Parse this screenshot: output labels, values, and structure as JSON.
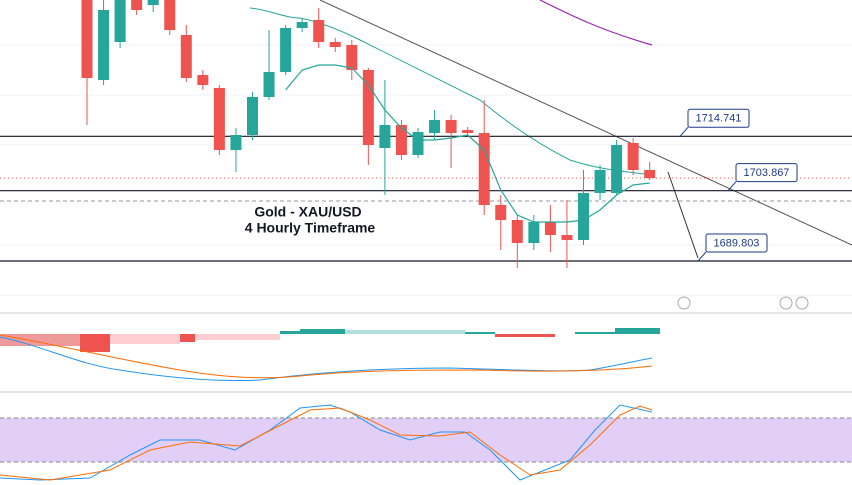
{
  "chart_data": {
    "type": "candlestick",
    "title": "Gold - XAU/USD",
    "subtitle": "4 Hourly Timeframe",
    "ylim": [
      1680,
      1742
    ],
    "up_color": "#26a69a",
    "down_color": "#ef5350",
    "open": [
      1742,
      1726,
      1733.6,
      1742,
      1741,
      1742,
      1735,
      1727,
      1724.4,
      1712,
      1715,
      1722.6,
      1727.6,
      1736.4,
      1738,
      1733.6,
      1733,
      1728,
      1712.4,
      1717,
      1711,
      1715.4,
      1718,
      1716,
      1715.4,
      1701,
      1698,
      1693.4,
      1697.6,
      1695,
      1694,
      1703.4,
      1703.4,
      1713.4,
      1708
    ],
    "high": [
      1742,
      1742,
      1742,
      1742,
      1742,
      1742,
      1737,
      1728,
      1725,
      1716.4,
      1723.6,
      1736,
      1737,
      1738.4,
      1740.4,
      1734.4,
      1734,
      1728.4,
      1726,
      1718,
      1716.4,
      1720,
      1719,
      1716.6,
      1722,
      1703,
      1699,
      1699,
      1701,
      1702,
      1708,
      1709,
      1714,
      1714.4,
      1709.6
    ],
    "low": [
      1717,
      1725,
      1732.4,
      1739,
      1739.6,
      1735,
      1725.6,
      1724,
      1711,
      1707.6,
      1714,
      1722,
      1727,
      1735.6,
      1732.4,
      1731.6,
      1726,
      1709,
      1703,
      1710,
      1710.4,
      1714,
      1708.4,
      1714.8,
      1699,
      1692,
      1688.4,
      1692,
      1691.6,
      1688.4,
      1693,
      1702,
      1703,
      1707,
      1706
    ],
    "close": [
      1726.4,
      1740,
      1742,
      1740,
      1742,
      1736,
      1726.4,
      1725,
      1712,
      1715,
      1722.6,
      1727.6,
      1736.4,
      1737.6,
      1733.6,
      1732.6,
      1728,
      1713,
      1717,
      1711,
      1715.6,
      1718,
      1715.4,
      1715.4,
      1701,
      1698,
      1693.4,
      1697.6,
      1695,
      1694,
      1703.4,
      1708,
      1713,
      1708,
      1706.4
    ],
    "moving_average": {
      "color": "#26a69a",
      "values": [
        null,
        null,
        null,
        null,
        null,
        null,
        null,
        null,
        null,
        null,
        null,
        null,
        1724,
        1728,
        1729,
        1729,
        1728.4,
        1725,
        1720,
        1716.4,
        1714,
        1714,
        1714.4,
        1715,
        1712,
        1704,
        1699,
        1697.6,
        1697.6,
        1697.6,
        1698,
        1700,
        1703,
        1705,
        1705.4
      ]
    },
    "levels": [
      1714.741,
      1703.867,
      1689.803
    ],
    "level_color": "#131722"
  }
}
